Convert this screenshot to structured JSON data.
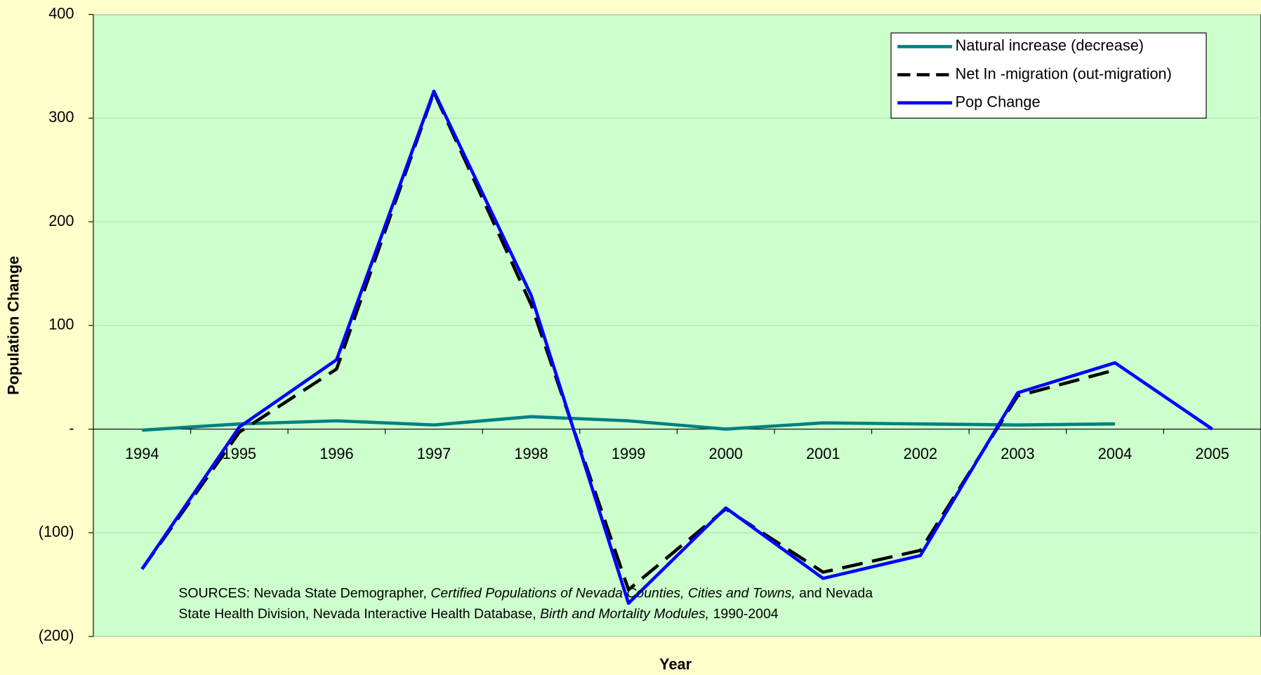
{
  "chart_data": {
    "type": "line",
    "xlabel": "Year",
    "ylabel": "Population Change",
    "categories": [
      "1994",
      "1995",
      "1996",
      "1997",
      "1998",
      "1999",
      "2000",
      "2001",
      "2002",
      "2003",
      "2004",
      "2005"
    ],
    "series": [
      {
        "name": "Natural increase (decrease)",
        "color": "#008080",
        "dash": false,
        "values": [
          -1,
          5,
          8,
          4,
          12,
          8,
          0,
          6,
          5,
          4,
          5,
          null
        ]
      },
      {
        "name": "Net In -migration (out-migration)",
        "color": "#000000",
        "dash": true,
        "values": [
          -135,
          -3,
          58,
          325,
          120,
          -155,
          -77,
          -138,
          -117,
          32,
          57,
          null
        ]
      },
      {
        "name": "Pop Change",
        "color": "#0000ff",
        "dash": false,
        "values": [
          -135,
          2,
          67,
          326,
          129,
          -168,
          -76,
          -144,
          -122,
          35,
          64,
          0
        ]
      }
    ],
    "ylim": [
      -200,
      400
    ],
    "yticks": [
      {
        "value": -200,
        "label": "(200)"
      },
      {
        "value": -100,
        "label": "(100)"
      },
      {
        "value": 0,
        "label": "-"
      },
      100,
      200,
      300,
      400
    ],
    "grid": true,
    "legend": "upper right",
    "annotation": [
      [
        "SOURCES: Nevada State Demographer, ",
        "Certified Populations of Nevada Counties, Cities and Towns,",
        " and Nevada"
      ],
      [
        "State Health Division, Nevada Interactive Health Database, ",
        "Birth and Mortality Modules,",
        " 1990-2004"
      ]
    ]
  }
}
